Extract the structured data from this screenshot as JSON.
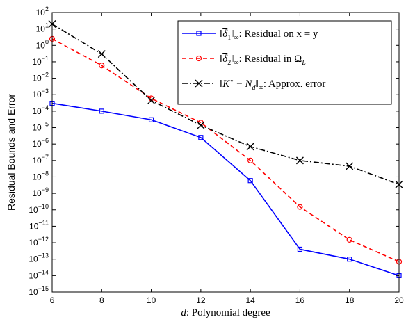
{
  "chart_data": {
    "type": "line",
    "xlabel": "d: Polynomial degree",
    "xlabel_var": "d",
    "xlabel_rest": ": Polynomial degree",
    "ylabel": "Residual Bounds and Error",
    "xlim": [
      6,
      20
    ],
    "ylim_exponent": [
      -15,
      2
    ],
    "y_scale": "log",
    "x_ticks": [
      6,
      8,
      10,
      12,
      14,
      16,
      18,
      20
    ],
    "y_tick_base": "10",
    "y_tick_exponents": [
      "2",
      "1",
      "0",
      "−1",
      "−2",
      "−3",
      "−4",
      "−5",
      "−6",
      "−7",
      "−8",
      "−9",
      "−10",
      "−11",
      "−12",
      "−13",
      "−14",
      "−15"
    ],
    "legend_position": "top-right",
    "x": [
      6,
      8,
      10,
      12,
      14,
      16,
      18,
      20
    ],
    "series": [
      {
        "name": "‖δ̄₁‖∞: Residual on x = y",
        "legend_rest": ": Residual on x = y",
        "color": "#0000ff",
        "line_style": "solid",
        "marker": "square",
        "values": [
          0.0003,
          0.0001,
          3e-05,
          2.5e-06,
          6e-09,
          4e-13,
          1e-13,
          1e-14
        ]
      },
      {
        "name": "‖δ̄₂‖∞: Residual in Ω_L",
        "legend_rest": ": Residual in Ω",
        "legend_sub": "L",
        "color": "#ff0000",
        "line_style": "dashed",
        "marker": "circle",
        "values": [
          2.5,
          0.06,
          0.0006,
          2e-05,
          1e-07,
          1.5e-10,
          1.5e-12,
          7e-14
        ]
      },
      {
        "name": "‖K* − N_d‖∞: Approx. error",
        "legend_rest": ": Approx. error",
        "color": "#000000",
        "line_style": "dashdot",
        "marker": "x",
        "values": [
          20,
          0.3,
          0.00045,
          1.4e-05,
          7e-07,
          1e-07,
          4.5e-08,
          3.5e-09
        ]
      }
    ]
  }
}
